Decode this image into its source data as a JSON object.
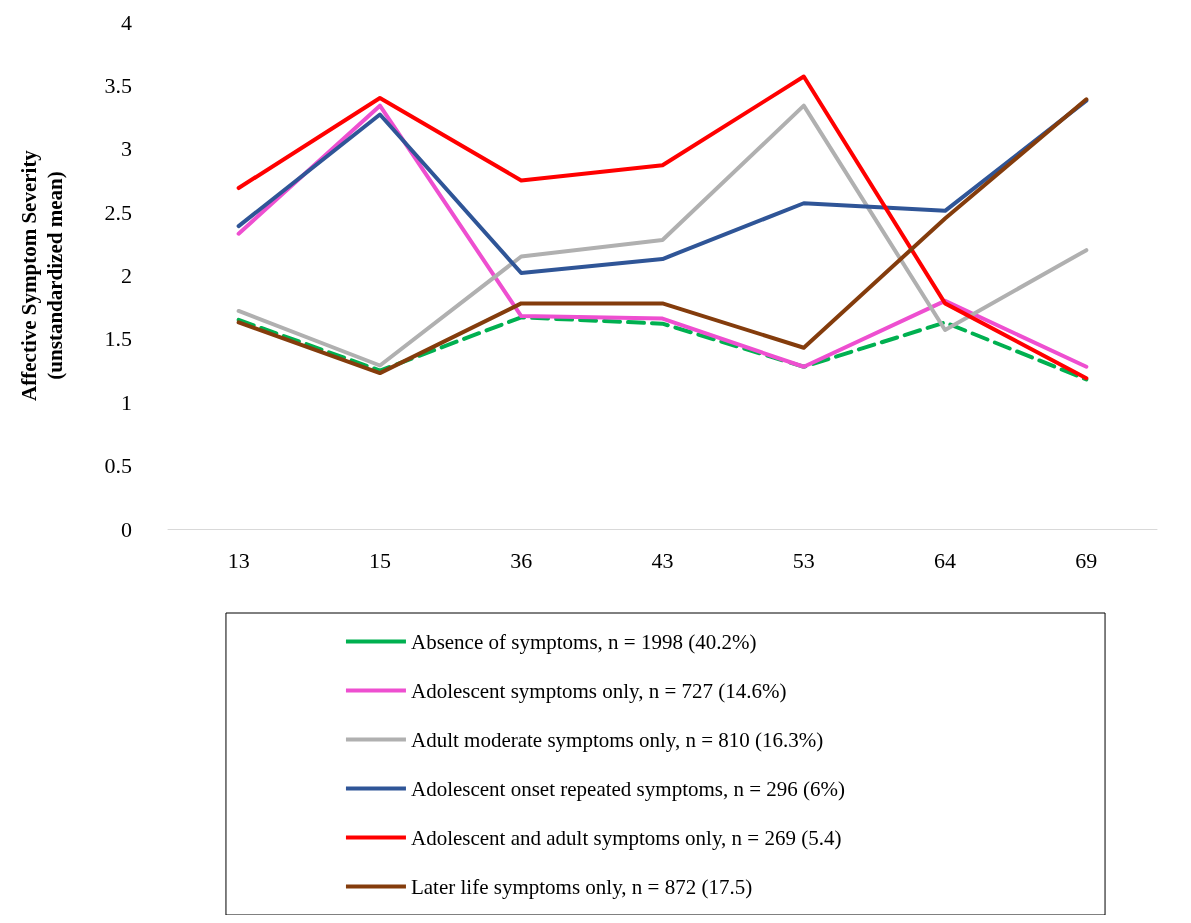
{
  "chart_data": {
    "type": "line",
    "ylabel": "Affective Symptom Severity\n(unstandardized mean)",
    "categories": [
      "13",
      "15",
      "36",
      "43",
      "53",
      "64",
      "69"
    ],
    "ylim": [
      0,
      4
    ],
    "yticks": [
      0,
      0.5,
      1,
      1.5,
      2,
      2.5,
      3,
      3.5,
      4
    ],
    "grid": false,
    "legend": "bottom",
    "marker": "none",
    "series": [
      {
        "name": "Absence of symptoms, n = 1998 (40.2%)",
        "color": "#00b050",
        "line_style": "dashed",
        "values": [
          1.65,
          1.25,
          1.67,
          1.62,
          1.28,
          1.63,
          1.18
        ]
      },
      {
        "name": "Adolescent symptoms only, n = 727 (14.6%)",
        "color": "#ee4fd0",
        "line_style": "solid",
        "values": [
          2.33,
          3.34,
          1.68,
          1.66,
          1.28,
          1.8,
          1.28
        ]
      },
      {
        "name": "Adult moderate symptoms only, n = 810 (16.3%)",
        "color": "#b0b0b0",
        "line_style": "solid",
        "values": [
          1.72,
          1.29,
          2.15,
          2.28,
          3.34,
          1.57,
          2.2
        ]
      },
      {
        "name": "Adolescent onset repeated symptoms, n = 296 (6%)",
        "color": "#2f5597",
        "line_style": "solid",
        "values": [
          2.39,
          3.27,
          2.02,
          2.13,
          2.57,
          2.51,
          3.38
        ]
      },
      {
        "name": "Adolescent and adult symptoms only, n = 269 (5.4)",
        "color": "#ff0000",
        "line_style": "solid",
        "values": [
          2.69,
          3.4,
          2.75,
          2.87,
          3.57,
          1.78,
          1.19
        ]
      },
      {
        "name": "Later life symptoms only, n = 872 (17.5)",
        "color": "#843c0c",
        "line_style": "solid",
        "values": [
          1.63,
          1.23,
          1.78,
          1.78,
          1.43,
          2.45,
          3.39
        ]
      }
    ]
  }
}
